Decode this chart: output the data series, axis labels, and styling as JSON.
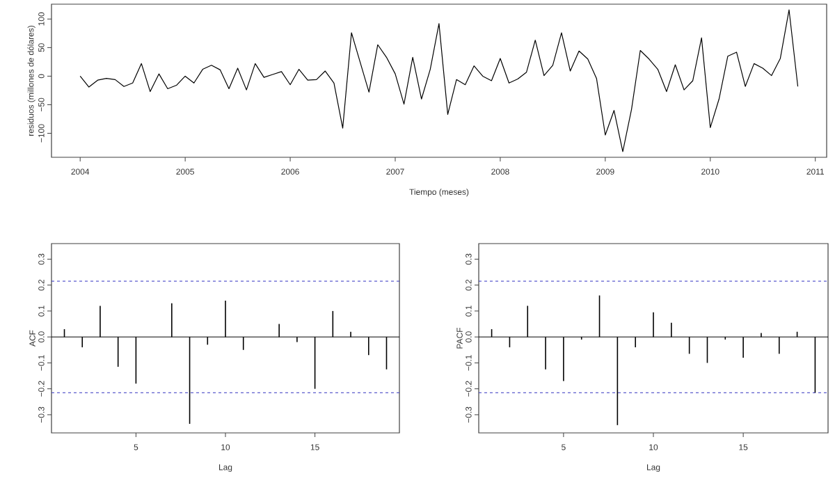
{
  "chart_data": [
    {
      "type": "line",
      "xlabel": "Tiempo (meses)",
      "ylabel": "residuos (millones de dólares)",
      "color": "#000000",
      "xlim": [
        "2003-09-23",
        "2011-02-10"
      ],
      "ylim": [
        -142,
        126
      ],
      "xticks": [
        "2004",
        "2005",
        "2006",
        "2007",
        "2008",
        "2009",
        "2010",
        "2011"
      ],
      "yticks": [
        {
          "value": -100,
          "label": "−100"
        },
        {
          "value": -50,
          "label": "−50"
        },
        0,
        50,
        100
      ],
      "x": [
        "2004-01",
        "2004-02",
        "2004-03",
        "2004-04",
        "2004-05",
        "2004-06",
        "2004-07",
        "2004-08",
        "2004-09",
        "2004-10",
        "2004-11",
        "2004-12",
        "2005-01",
        "2005-02",
        "2005-03",
        "2005-04",
        "2005-05",
        "2005-06",
        "2005-07",
        "2005-08",
        "2005-09",
        "2005-10",
        "2005-11",
        "2005-12",
        "2006-01",
        "2006-02",
        "2006-03",
        "2006-04",
        "2006-05",
        "2006-06",
        "2006-07",
        "2006-08",
        "2006-09",
        "2006-10",
        "2006-11",
        "2006-12",
        "2007-01",
        "2007-02",
        "2007-03",
        "2007-04",
        "2007-05",
        "2007-06",
        "2007-07",
        "2007-08",
        "2007-09",
        "2007-10",
        "2007-11",
        "2007-12",
        "2008-01",
        "2008-02",
        "2008-03",
        "2008-04",
        "2008-05",
        "2008-06",
        "2008-07",
        "2008-08",
        "2008-09",
        "2008-10",
        "2008-11",
        "2008-12",
        "2009-01",
        "2009-02",
        "2009-03",
        "2009-04",
        "2009-05",
        "2009-06",
        "2009-07",
        "2009-08",
        "2009-09",
        "2009-10",
        "2009-11",
        "2009-12",
        "2010-01",
        "2010-02",
        "2010-03",
        "2010-04",
        "2010-05",
        "2010-06",
        "2010-07",
        "2010-08",
        "2010-09",
        "2010-10",
        "2010-11"
      ],
      "values": [
        0,
        -19,
        -7,
        -4,
        -6,
        -18,
        -12,
        22,
        -27,
        4,
        -22,
        -16,
        0,
        -12,
        12,
        19,
        11,
        -22,
        14,
        -24,
        22,
        -2,
        3,
        8,
        -15,
        12,
        -7,
        -6,
        9,
        -12,
        -91,
        76,
        24,
        -28,
        55,
        33,
        4,
        -49,
        33,
        -40,
        12,
        92,
        -67,
        -6,
        -15,
        18,
        0,
        -8,
        31,
        -12,
        -5,
        7,
        63,
        1,
        19,
        76,
        9,
        44,
        30,
        -4,
        -103,
        -60,
        -132,
        -58,
        45,
        30,
        12,
        -27,
        20,
        -24,
        -8,
        67,
        -90,
        -40,
        35,
        42,
        -18,
        22,
        14,
        1,
        31,
        116,
        -18
      ]
    },
    {
      "type": "bar",
      "xlabel": "Lag",
      "ylabel": "ACF",
      "color": "#000000",
      "xlim": [
        0.28,
        19.72
      ],
      "ylim": [
        -0.37,
        0.36
      ],
      "xticks": [
        5,
        10,
        15
      ],
      "yticks": [
        {
          "value": -0.3,
          "label": "−0.3"
        },
        {
          "value": -0.2,
          "label": "−0.2"
        },
        {
          "value": -0.1,
          "label": "−0.1"
        },
        {
          "value": 0,
          "label": "0.0"
        },
        {
          "value": 0.1,
          "label": "0.1"
        },
        {
          "value": 0.2,
          "label": "0.2"
        },
        {
          "value": 0.3,
          "label": "0.3"
        }
      ],
      "x": [
        1,
        2,
        3,
        4,
        5,
        6,
        7,
        8,
        9,
        10,
        11,
        12,
        13,
        14,
        15,
        16,
        17,
        18,
        19
      ],
      "values": [
        0.03,
        -0.04,
        0.12,
        -0.115,
        -0.18,
        0.0,
        0.13,
        -0.335,
        -0.03,
        0.14,
        -0.05,
        0.0,
        0.05,
        -0.02,
        -0.2,
        0.1,
        0.02,
        -0.07,
        -0.125
      ],
      "ref_lines": [
        {
          "axis": "y",
          "value": 0.215,
          "color": "#3030c0",
          "line_style": "dashed"
        },
        {
          "axis": "y",
          "value": -0.215,
          "color": "#3030c0",
          "line_style": "dashed"
        },
        {
          "axis": "y",
          "value": 0,
          "color": "#000000",
          "line_style": "solid"
        }
      ]
    },
    {
      "type": "bar",
      "xlabel": "Lag",
      "ylabel": "PACF",
      "color": "#000000",
      "xlim": [
        0.28,
        19.72
      ],
      "ylim": [
        -0.37,
        0.36
      ],
      "xticks": [
        5,
        10,
        15
      ],
      "yticks": [
        {
          "value": -0.3,
          "label": "−0.3"
        },
        {
          "value": -0.2,
          "label": "−0.2"
        },
        {
          "value": -0.1,
          "label": "−0.1"
        },
        {
          "value": 0,
          "label": "0.0"
        },
        {
          "value": 0.1,
          "label": "0.1"
        },
        {
          "value": 0.2,
          "label": "0.2"
        },
        {
          "value": 0.3,
          "label": "0.3"
        }
      ],
      "x": [
        1,
        2,
        3,
        4,
        5,
        6,
        7,
        8,
        9,
        10,
        11,
        12,
        13,
        14,
        15,
        16,
        17,
        18,
        19
      ],
      "values": [
        0.03,
        -0.04,
        0.12,
        -0.125,
        -0.17,
        -0.01,
        0.16,
        -0.34,
        -0.04,
        0.095,
        0.055,
        -0.065,
        -0.1,
        -0.01,
        -0.08,
        0.015,
        -0.065,
        0.02,
        -0.215
      ],
      "ref_lines": [
        {
          "axis": "y",
          "value": 0.215,
          "color": "#3030c0",
          "line_style": "dashed"
        },
        {
          "axis": "y",
          "value": -0.215,
          "color": "#3030c0",
          "line_style": "dashed"
        },
        {
          "axis": "y",
          "value": 0,
          "color": "#000000",
          "line_style": "solid"
        }
      ]
    }
  ]
}
